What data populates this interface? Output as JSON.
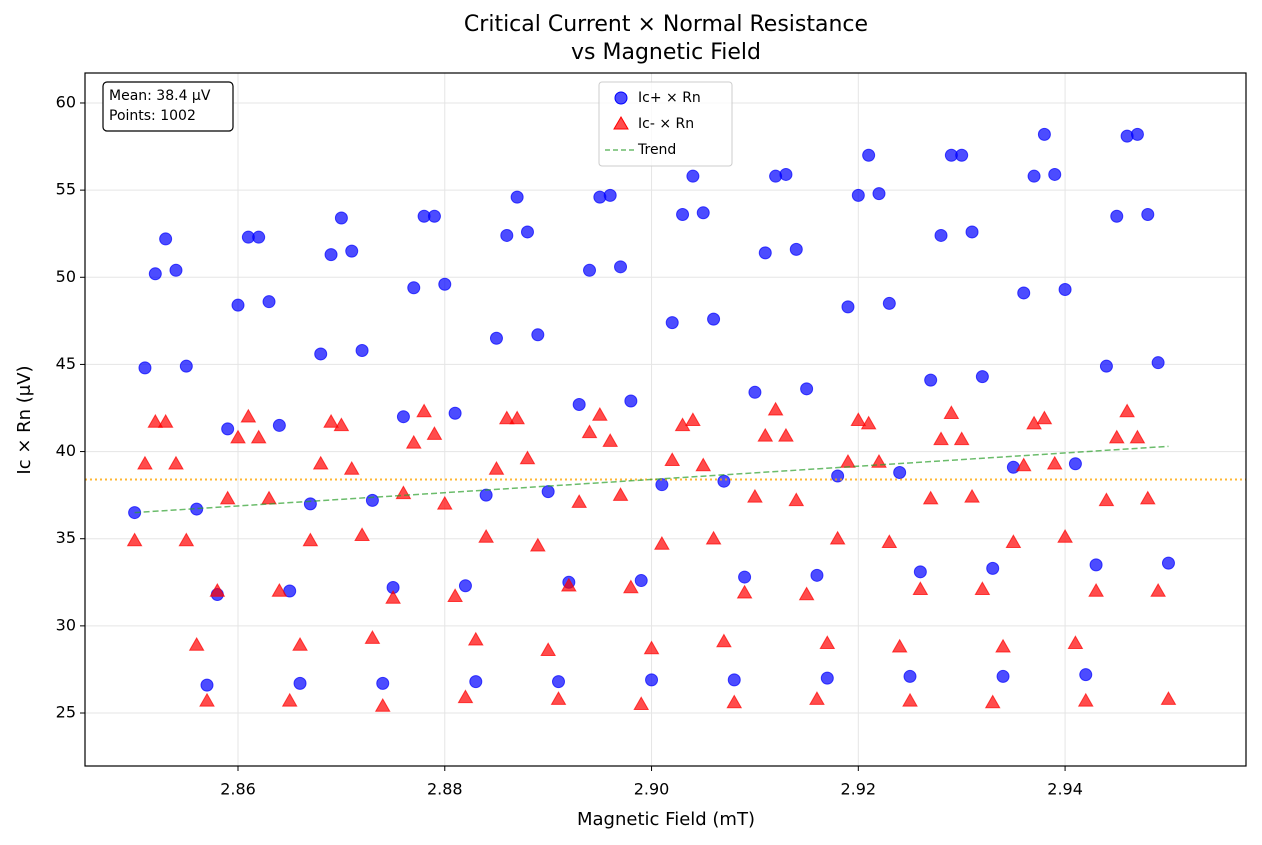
{
  "chart_data": {
    "type": "scatter",
    "title": [
      "Critical Current × Normal Resistance",
      "vs Magnetic Field"
    ],
    "x_label": "Magnetic Field (mT)",
    "y_label": "Ic × Rn (μV)",
    "xlim": [
      2.8452,
      2.9575
    ],
    "ylim": [
      21.96,
      61.72
    ],
    "xticks": [
      2.86,
      2.88,
      {
        "value": 2.9,
        "label": "2.90"
      },
      2.92,
      2.94
    ],
    "yticks": [
      25,
      30,
      35,
      40,
      45,
      50,
      55,
      60
    ],
    "grid": true,
    "legend": "upper center",
    "annotation": [
      "Mean: 38.4 μV",
      "Points: 1002"
    ],
    "x": [
      2.85,
      2.851,
      2.852,
      2.853,
      2.854,
      2.855,
      2.856,
      2.857,
      2.858,
      2.859,
      2.86,
      2.861,
      2.862,
      2.863,
      2.864,
      2.865,
      2.866,
      2.867,
      2.868,
      2.869,
      2.87,
      2.871,
      2.872,
      2.873,
      2.874,
      2.875,
      2.876,
      2.877,
      2.878,
      2.879,
      2.88,
      2.881,
      2.882,
      2.883,
      2.884,
      2.885,
      2.886,
      2.887,
      2.888,
      2.889,
      2.89,
      2.891,
      2.892,
      2.893,
      2.894,
      2.895,
      2.896,
      2.897,
      2.898,
      2.899,
      2.9,
      2.901,
      2.902,
      2.903,
      2.904,
      2.905,
      2.906,
      2.907,
      2.908,
      2.909,
      2.91,
      2.911,
      2.912,
      2.913,
      2.914,
      2.915,
      2.916,
      2.917,
      2.918,
      2.919,
      2.92,
      2.921,
      2.922,
      2.923,
      2.924,
      2.925,
      2.926,
      2.927,
      2.928,
      2.929,
      2.93,
      2.931,
      2.932,
      2.933,
      2.934,
      2.935,
      2.936,
      2.937,
      2.938,
      2.939,
      2.94,
      2.941,
      2.942,
      2.943,
      2.944,
      2.945,
      2.946,
      2.947,
      2.948,
      2.949,
      2.95
    ],
    "series": [
      {
        "name": "Ic+ × Rn",
        "color": "#0000ff",
        "marker": "circle",
        "values": [
          36.5,
          44.8,
          50.2,
          52.2,
          50.4,
          44.9,
          36.7,
          26.6,
          31.8,
          41.3,
          48.4,
          52.3,
          52.3,
          48.6,
          41.5,
          32.0,
          26.7,
          37.0,
          45.6,
          51.3,
          53.4,
          51.5,
          45.8,
          37.2,
          26.7,
          32.2,
          42.0,
          49.4,
          53.5,
          53.5,
          49.6,
          42.2,
          32.3,
          26.8,
          37.5,
          46.5,
          52.4,
          54.6,
          52.6,
          46.7,
          37.7,
          26.8,
          32.5,
          42.7,
          50.4,
          54.6,
          54.7,
          50.6,
          42.9,
          32.6,
          26.9,
          38.1,
          47.4,
          53.6,
          55.8,
          53.7,
          47.6,
          38.3,
          26.9,
          32.8,
          43.4,
          51.4,
          55.8,
          55.9,
          51.6,
          43.6,
          32.9,
          27.0,
          38.6,
          48.3,
          54.7,
          57.0,
          54.8,
          48.5,
          38.8,
          27.1,
          33.1,
          44.1,
          52.4,
          57.0,
          57.0,
          52.6,
          44.3,
          33.3,
          27.1,
          39.1,
          49.1,
          55.8,
          58.2,
          55.9,
          49.3,
          39.3,
          27.2,
          33.5,
          44.9,
          53.5,
          58.1,
          58.2,
          53.6,
          45.1,
          33.6
        ]
      },
      {
        "name": "Ic- × Rn",
        "color": "#ff0000",
        "marker": "triangle",
        "values": [
          34.9,
          39.3,
          41.7,
          41.7,
          39.3,
          34.9,
          28.9,
          25.7,
          32.0,
          37.3,
          40.8,
          42.0,
          40.8,
          37.3,
          32.0,
          25.7,
          28.9,
          34.9,
          39.3,
          41.7,
          41.5,
          39.0,
          35.2,
          29.3,
          25.4,
          31.6,
          37.6,
          40.5,
          42.3,
          41.0,
          37.0,
          31.7,
          25.9,
          29.2,
          35.1,
          39.0,
          41.9,
          41.9,
          39.6,
          34.6,
          28.6,
          25.8,
          32.3,
          37.1,
          41.1,
          42.1,
          40.6,
          37.5,
          32.2,
          25.5,
          28.7,
          34.7,
          39.5,
          41.5,
          41.8,
          39.2,
          35.0,
          29.1,
          25.6,
          31.9,
          37.4,
          40.9,
          42.4,
          40.9,
          37.2,
          31.8,
          25.8,
          29.0,
          35.0,
          39.4,
          41.8,
          41.6,
          39.4,
          34.8,
          28.8,
          25.7,
          32.1,
          37.3,
          40.7,
          42.2,
          40.7,
          37.4,
          32.1,
          25.6,
          28.8,
          34.8,
          39.2,
          41.6,
          41.9,
          39.3,
          35.1,
          29.0,
          25.7,
          32.0,
          37.2,
          40.8,
          42.3,
          40.8,
          37.3,
          32.0,
          25.8
        ]
      }
    ],
    "trend": {
      "name": "Trend",
      "color": "#2ca02c",
      "x": [
        2.85,
        2.95
      ],
      "values": [
        36.5,
        40.3
      ]
    },
    "mean_line": {
      "value": 38.4,
      "color": "#ffa500"
    }
  }
}
